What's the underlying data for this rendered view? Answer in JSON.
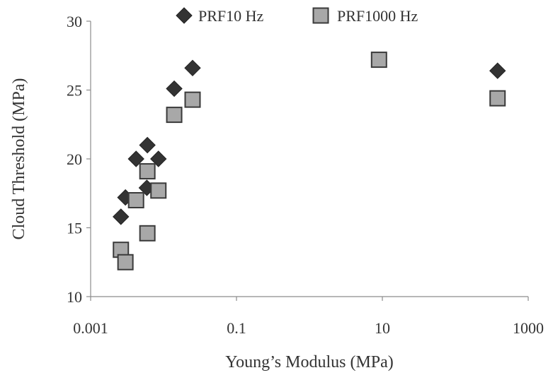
{
  "chart_data": {
    "type": "scatter",
    "title": "",
    "xlabel": "Young’s Modulus (MPa)",
    "ylabel": "Cloud Threshold (MPa)",
    "xscale": "log",
    "xlim": [
      0.001,
      1000
    ],
    "ylim": [
      10,
      30
    ],
    "xticks": [
      0.001,
      0.1,
      10,
      1000
    ],
    "xtick_labels": [
      "0.001",
      "0.1",
      "10",
      "1000"
    ],
    "yticks": [
      10,
      15,
      20,
      25,
      30
    ],
    "ytick_labels": [
      "10",
      "15",
      "20",
      "25",
      "30"
    ],
    "grid": false,
    "legend_position": "top",
    "series": [
      {
        "name": "PRF10 Hz",
        "marker": "diamond",
        "color": "#333333",
        "x": [
          0.0026,
          0.003,
          0.0042,
          0.006,
          0.0059,
          0.0085,
          0.014,
          0.025,
          380
        ],
        "y": [
          15.8,
          17.2,
          20.0,
          21.0,
          17.9,
          20.0,
          25.1,
          26.6,
          26.4
        ]
      },
      {
        "name": "PRF1000 Hz",
        "marker": "square",
        "color": "#a8a8a8",
        "x": [
          0.0026,
          0.003,
          0.0042,
          0.006,
          0.006,
          0.0085,
          0.014,
          0.025,
          9,
          380
        ],
        "y": [
          13.4,
          12.5,
          17.0,
          19.1,
          14.6,
          17.7,
          23.2,
          24.3,
          27.2,
          24.4
        ]
      }
    ]
  }
}
